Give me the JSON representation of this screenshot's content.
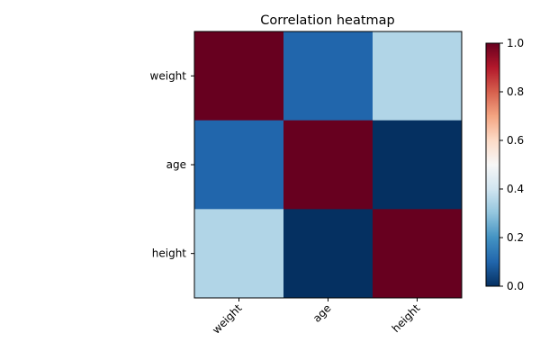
{
  "chart_data": {
    "type": "heatmap",
    "title": "Correlation heatmap",
    "xlabel": "",
    "ylabel": "",
    "x_categories": [
      "weight",
      "age",
      "height"
    ],
    "y_categories": [
      "weight",
      "age",
      "height"
    ],
    "values": [
      [
        1.0,
        0.1,
        0.35
      ],
      [
        0.1,
        1.0,
        0.0
      ],
      [
        0.35,
        0.0,
        1.0
      ]
    ],
    "colormap": "RdBu_r",
    "colorbar": {
      "range": [
        0.0,
        1.0
      ],
      "ticks": [
        0.0,
        0.2,
        0.4,
        0.6,
        0.8,
        1.0
      ],
      "tick_labels": [
        "0.0",
        "0.2",
        "0.4",
        "0.6",
        "0.8",
        "1.0"
      ]
    },
    "grid": false
  }
}
